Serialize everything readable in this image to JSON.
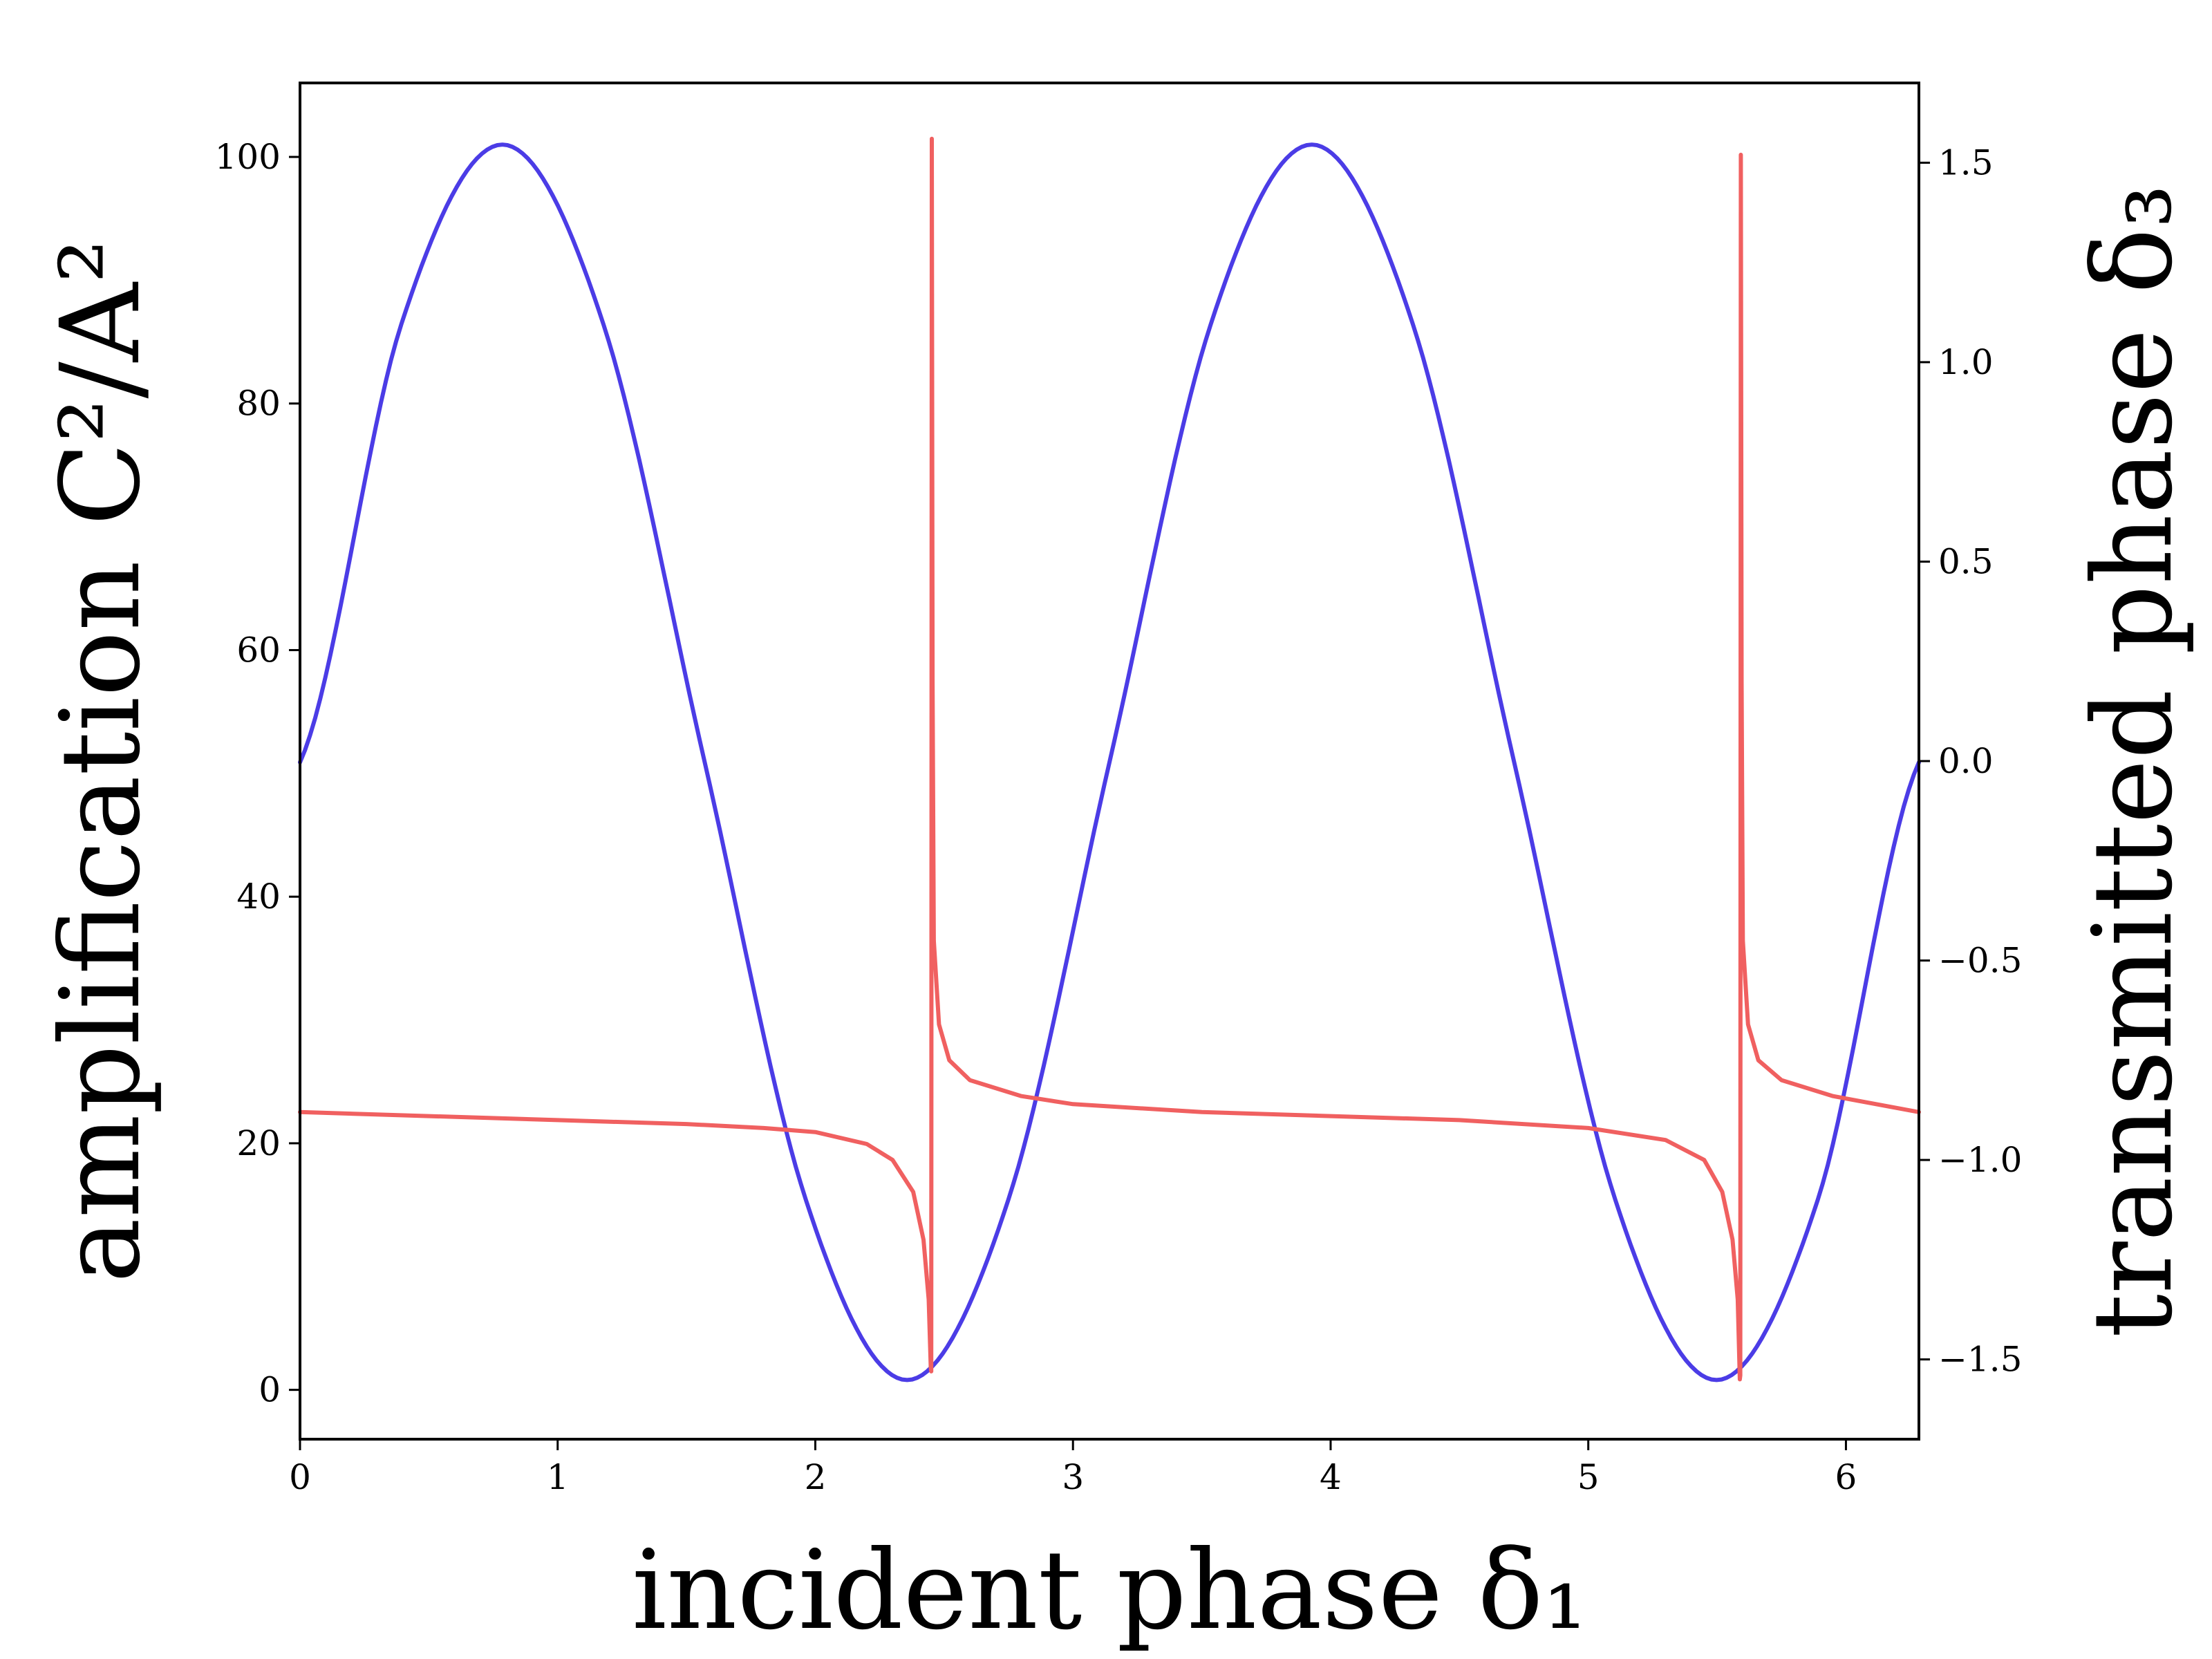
{
  "chart_data": {
    "type": "line",
    "xlabel": "incident phase δ₁",
    "ylabel_left": "amplification C²/A²",
    "ylabel_right": "transmitted phase δ₃",
    "xlim": [
      0,
      6.2832
    ],
    "ylim_left": [
      -4,
      106
    ],
    "ylim_right": [
      -1.7,
      1.7
    ],
    "xticks": [
      "0",
      "1",
      "2",
      "3",
      "4",
      "5",
      "6"
    ],
    "yticks_left": [
      "0",
      "20",
      "40",
      "60",
      "80",
      "100"
    ],
    "yticks_right": [
      "−1.5",
      "−1.0",
      "−0.5",
      "0.0",
      "0.5",
      "1.0",
      "1.5"
    ],
    "grid": false,
    "series": [
      {
        "axis": "left",
        "color": "#4b3ce6",
        "x": [
          0.0,
          0.3927,
          0.7854,
          1.1781,
          1.5708,
          1.9635,
          2.3562,
          2.7489,
          3.1416,
          3.5343,
          3.927,
          4.3197,
          4.7124,
          5.1051,
          5.4978,
          5.8905,
          6.2832
        ],
        "y": [
          50.9,
          86.4,
          101.0,
          86.4,
          50.9,
          15.4,
          0.8,
          15.4,
          50.9,
          86.4,
          101.0,
          86.4,
          50.9,
          15.4,
          0.8,
          15.4,
          50.9
        ]
      },
      {
        "axis": "right",
        "color": "#f06060",
        "x": [
          0.0,
          0.5,
          1.0,
          1.5,
          1.8,
          2.0,
          2.2,
          2.3,
          2.38,
          2.42,
          2.44,
          2.448,
          2.45,
          2.452,
          2.455,
          2.46,
          2.48,
          2.52,
          2.6,
          2.8,
          3.0,
          3.5,
          4.0,
          4.5,
          5.0,
          5.3,
          5.45,
          5.52,
          5.56,
          5.58,
          5.588,
          5.59,
          5.592,
          5.595,
          5.6,
          5.62,
          5.66,
          5.75,
          5.95,
          6.2832
        ],
        "y": [
          -0.88,
          -0.89,
          -0.9,
          -0.91,
          -0.92,
          -0.93,
          -0.96,
          -1.0,
          -1.08,
          -1.2,
          -1.35,
          -1.52,
          -1.53,
          1.56,
          0.2,
          -0.45,
          -0.66,
          -0.75,
          -0.8,
          -0.84,
          -0.86,
          -0.88,
          -0.89,
          -0.9,
          -0.92,
          -0.95,
          -1.0,
          -1.08,
          -1.2,
          -1.35,
          -1.55,
          -1.54,
          1.52,
          0.2,
          -0.45,
          -0.66,
          -0.75,
          -0.8,
          -0.84,
          -0.88
        ]
      }
    ]
  }
}
